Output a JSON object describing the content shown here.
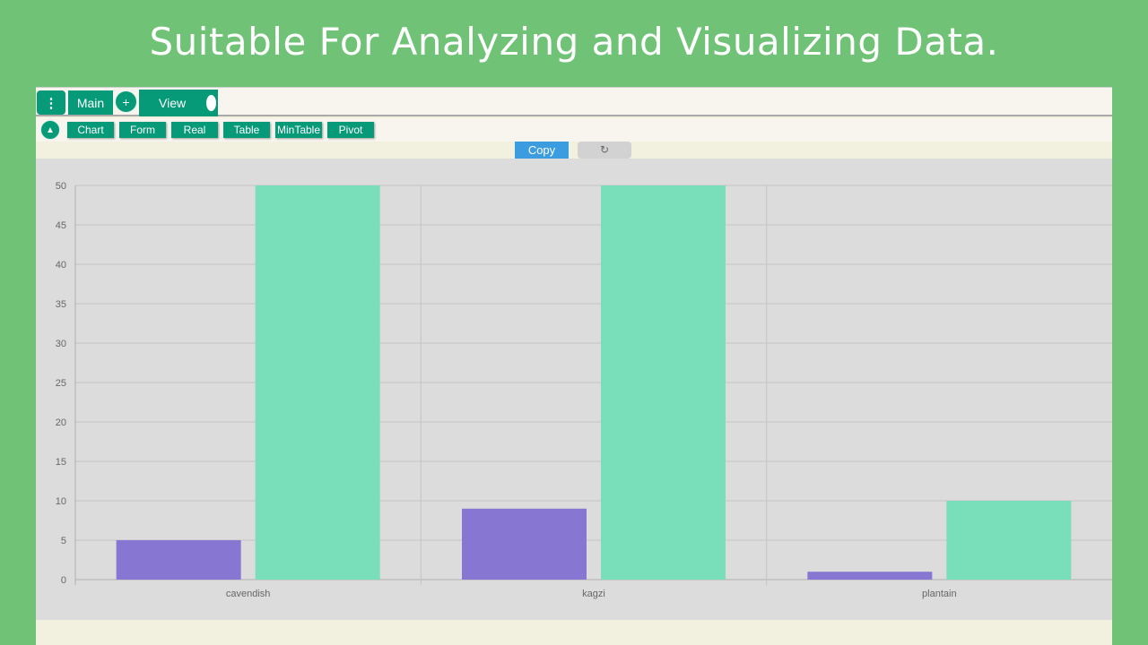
{
  "headline": "Suitable For Analyzing and Visualizing Data.",
  "toolbar": {
    "menu_icon": "⋮",
    "main_tab": "Main",
    "add_icon": "+",
    "view_tab": "View"
  },
  "subtoolbar": {
    "collapse_icon": "▲",
    "tabs": [
      "Chart",
      "Form",
      "Real",
      "Table",
      "MinTable",
      "Pivot"
    ]
  },
  "actions": {
    "copy_label": "Copy",
    "refresh_icon": "↻"
  },
  "colors": {
    "background": "#6fc276",
    "accent": "#079a78",
    "copy": "#3b9ddf",
    "series1": "#8877d2",
    "series2": "#79dfbb"
  },
  "chart_data": {
    "type": "bar",
    "categories": [
      "cavendish",
      "kagzi",
      "plantain"
    ],
    "series": [
      {
        "values": [
          5,
          9,
          1
        ],
        "color": "#8877d2"
      },
      {
        "values": [
          50,
          50,
          10
        ],
        "color": "#79dfbb"
      }
    ],
    "ylim": [
      0,
      50
    ],
    "yticks": [
      0,
      5,
      10,
      15,
      20,
      25,
      30,
      35,
      40,
      45,
      50
    ],
    "grid": true
  }
}
